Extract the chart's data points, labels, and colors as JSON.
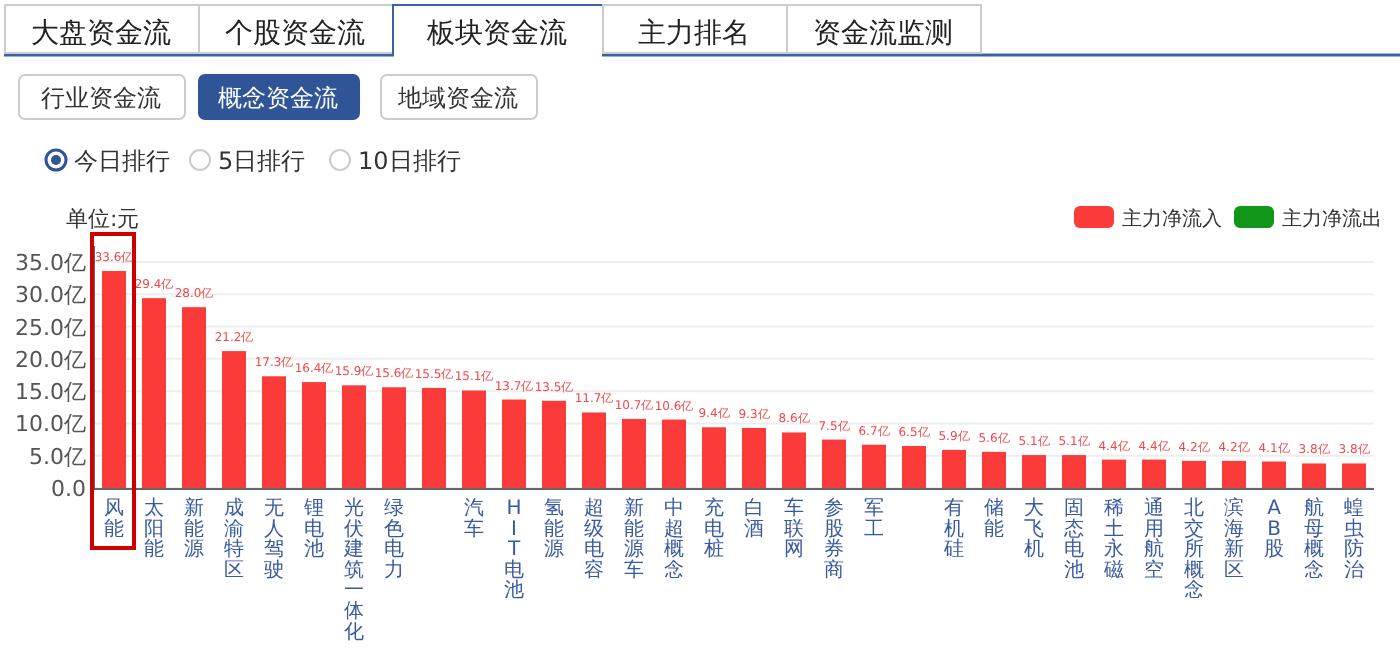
{
  "chart_data": {
    "type": "bar",
    "ylabel": "单位:元",
    "annotations": [
      "大盘资金流",
      "个股资金流",
      "板块资金流",
      "主力排名",
      "资金流监测",
      "行业资金流",
      "概念资金流",
      "地域资金流",
      "今日排行",
      "5日排行",
      "10日排行"
    ],
    "categories": [
      "风能",
      "太阳能",
      "新能源",
      "成渝特区",
      "无人驾驶",
      "锂电池",
      "光伏建筑一体化",
      "绿色电力",
      null,
      "汽车",
      "HIT电池",
      "氢能源",
      "超级电容",
      "新能源车",
      "中超概念",
      "充电桩",
      "白酒",
      "车联网",
      "参股券商",
      "军工",
      null,
      "有机硅",
      "储能",
      "大飞机",
      "固态电池",
      "稀土永磁",
      "通用航空",
      "北交所概念",
      "滨海新区",
      "AB股",
      "航母概念",
      "蝗虫防治"
    ],
    "series": [
      {
        "name": "主力净流入",
        "color": "#fb3a3a",
        "values": [
          33.6,
          29.4,
          28.0,
          21.2,
          17.3,
          16.4,
          15.9,
          15.6,
          15.5,
          15.1,
          13.7,
          13.5,
          11.7,
          10.7,
          10.6,
          9.4,
          9.3,
          8.6,
          7.5,
          6.7,
          6.5,
          5.9,
          5.6,
          5.1,
          5.1,
          4.4,
          4.4,
          4.2,
          4.2,
          4.1,
          3.8,
          3.8
        ],
        "value_labels": [
          "33.6亿",
          "29.4亿",
          "28.0亿",
          "21.2亿",
          "17.3亿",
          "16.4亿",
          "15.9亿",
          "15.6亿",
          "15.5亿",
          "15.1亿",
          "13.7亿",
          "13.5亿",
          "11.7亿",
          "10.7亿",
          "10.6亿",
          "9.4亿",
          "9.3亿",
          "8.6亿",
          "7.5亿",
          "6.7亿",
          "6.5亿",
          "5.9亿",
          "5.6亿",
          "5.1亿",
          "5.1亿",
          "4.4亿",
          "4.4亿",
          "4.2亿",
          "4.2亿",
          "4.1亿",
          "3.8亿",
          "3.8亿"
        ]
      },
      {
        "name": "主力净流出",
        "color": "#109618",
        "values": [
          null,
          null,
          null,
          null,
          null,
          null,
          null,
          null,
          null,
          null,
          null,
          null,
          null,
          null,
          null,
          null,
          null,
          null,
          null,
          null,
          null,
          null,
          null,
          null,
          null,
          null,
          null,
          null,
          null,
          null,
          null,
          null
        ]
      }
    ],
    "ylim": [
      0,
      35
    ],
    "yticks": [
      {
        "value": 0,
        "label": "0.0"
      },
      {
        "value": 5,
        "label": "5.0亿"
      },
      {
        "value": 10,
        "label": "10.0亿"
      },
      {
        "value": 15,
        "label": "15.0亿"
      },
      {
        "value": 20,
        "label": "20.0亿"
      },
      {
        "value": 25,
        "label": "25.0亿"
      },
      {
        "value": 30,
        "label": "30.0亿"
      },
      {
        "value": 35,
        "label": "35.0亿"
      }
    ],
    "grid": "y",
    "legend": "top right"
  }
}
